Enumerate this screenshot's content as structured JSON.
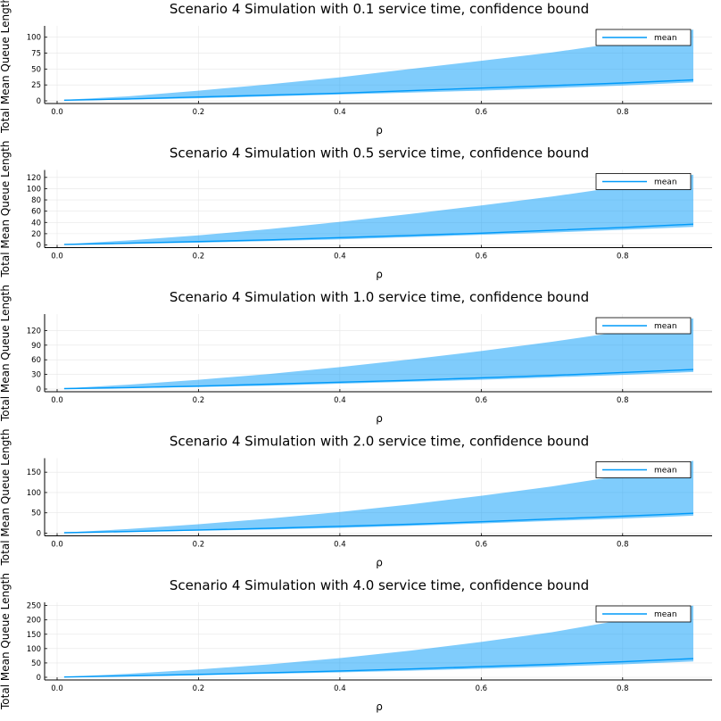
{
  "colors": {
    "series": "#009af9",
    "band": "#009af9",
    "axis": "#000000",
    "grid": "#e6e6e6"
  },
  "chart_data": [
    {
      "type": "line",
      "title": "Scenario 4 Simulation with 0.1 service time, confidence bound",
      "xlabel": "ρ",
      "ylabel": "Total Mean Queue Length",
      "xlim": [
        0.0,
        0.9
      ],
      "ylim": [
        0,
        115
      ],
      "xticks": [
        0.0,
        0.2,
        0.4,
        0.6,
        0.8
      ],
      "xtick_labels": [
        "0.0",
        "0.2",
        "0.4",
        "0.6",
        "0.8"
      ],
      "yticks": [
        0,
        25,
        50,
        75,
        100
      ],
      "ytick_labels": [
        "0",
        "25",
        "50",
        "75",
        "100"
      ],
      "grid": true,
      "legend": "top-right",
      "x": [
        0.01,
        0.1,
        0.2,
        0.3,
        0.4,
        0.5,
        0.6,
        0.7,
        0.8,
        0.9
      ],
      "series": [
        {
          "name": "mean",
          "values": [
            1,
            3,
            6,
            9,
            12,
            16,
            20,
            24,
            28,
            33
          ]
        }
      ],
      "band": {
        "lower": [
          0.5,
          2,
          4,
          7,
          10,
          13,
          16,
          20,
          24,
          29
        ],
        "upper": [
          1.5,
          7,
          16,
          26,
          37,
          50,
          63,
          76,
          92,
          112
        ]
      }
    },
    {
      "type": "line",
      "title": "Scenario 4 Simulation with 0.5 service time, confidence bound",
      "xlabel": "ρ",
      "ylabel": "Total Mean Queue Length",
      "xlim": [
        0.0,
        0.9
      ],
      "ylim": [
        0,
        130
      ],
      "xticks": [
        0.0,
        0.2,
        0.4,
        0.6,
        0.8
      ],
      "xtick_labels": [
        "0.0",
        "0.2",
        "0.4",
        "0.6",
        "0.8"
      ],
      "yticks": [
        0,
        20,
        40,
        60,
        80,
        100,
        120
      ],
      "ytick_labels": [
        "0",
        "20",
        "40",
        "60",
        "80",
        "100",
        "120"
      ],
      "grid": true,
      "legend": "top-right",
      "x": [
        0.01,
        0.1,
        0.2,
        0.3,
        0.4,
        0.5,
        0.6,
        0.7,
        0.8,
        0.9
      ],
      "series": [
        {
          "name": "mean",
          "values": [
            1,
            3,
            6,
            9,
            13,
            17,
            21,
            26,
            31,
            37
          ]
        }
      ],
      "band": {
        "lower": [
          0.5,
          2,
          4,
          7,
          10,
          14,
          18,
          22,
          27,
          32
        ],
        "upper": [
          1.5,
          8,
          17,
          28,
          41,
          55,
          70,
          86,
          104,
          125
        ]
      }
    },
    {
      "type": "line",
      "title": "Scenario 4 Simulation with 1.0 service time, confidence bound",
      "xlabel": "ρ",
      "ylabel": "Total Mean Queue Length",
      "xlim": [
        0.0,
        0.9
      ],
      "ylim": [
        0,
        150
      ],
      "xticks": [
        0.0,
        0.2,
        0.4,
        0.6,
        0.8
      ],
      "xtick_labels": [
        "0.0",
        "0.2",
        "0.4",
        "0.6",
        "0.8"
      ],
      "yticks": [
        0,
        30,
        60,
        90,
        120
      ],
      "ytick_labels": [
        "0",
        "30",
        "60",
        "90",
        "120"
      ],
      "grid": true,
      "legend": "top-right",
      "x": [
        0.01,
        0.1,
        0.2,
        0.3,
        0.4,
        0.5,
        0.6,
        0.7,
        0.8,
        0.9
      ],
      "series": [
        {
          "name": "mean",
          "values": [
            1,
            3,
            6,
            10,
            14,
            18,
            23,
            28,
            34,
            40
          ]
        }
      ],
      "band": {
        "lower": [
          0.5,
          2,
          4,
          7,
          11,
          15,
          19,
          24,
          29,
          35
        ],
        "upper": [
          1.5,
          9,
          19,
          31,
          45,
          61,
          78,
          97,
          118,
          145
        ]
      }
    },
    {
      "type": "line",
      "title": "Scenario 4 Simulation with 2.0 service time, confidence bound",
      "xlabel": "ρ",
      "ylabel": "Total Mean Queue Length",
      "xlim": [
        0.0,
        0.9
      ],
      "ylim": [
        0,
        180
      ],
      "xticks": [
        0.0,
        0.2,
        0.4,
        0.6,
        0.8
      ],
      "xtick_labels": [
        "0.0",
        "0.2",
        "0.4",
        "0.6",
        "0.8"
      ],
      "yticks": [
        0,
        50,
        100,
        150
      ],
      "ytick_labels": [
        "0",
        "50",
        "100",
        "150"
      ],
      "grid": true,
      "legend": "top-right",
      "x": [
        0.01,
        0.1,
        0.2,
        0.3,
        0.4,
        0.5,
        0.6,
        0.7,
        0.8,
        0.9
      ],
      "series": [
        {
          "name": "mean",
          "values": [
            1,
            4,
            8,
            12,
            17,
            22,
            28,
            35,
            42,
            49
          ]
        }
      ],
      "band": {
        "lower": [
          0.5,
          3,
          6,
          9,
          13,
          18,
          24,
          30,
          36,
          43
        ],
        "upper": [
          1.5,
          10,
          22,
          36,
          52,
          71,
          92,
          115,
          142,
          178
        ]
      }
    },
    {
      "type": "line",
      "title": "Scenario 4 Simulation with 4.0 service time, confidence bound",
      "xlabel": "ρ",
      "ylabel": "Total Mean Queue Length",
      "xlim": [
        0.0,
        0.9
      ],
      "ylim": [
        0,
        255
      ],
      "xticks": [
        0.0,
        0.2,
        0.4,
        0.6,
        0.8
      ],
      "xtick_labels": [
        "0.0",
        "0.2",
        "0.4",
        "0.6",
        "0.8"
      ],
      "yticks": [
        0,
        50,
        100,
        150,
        200,
        250
      ],
      "ytick_labels": [
        "0",
        "50",
        "100",
        "150",
        "200",
        "250"
      ],
      "grid": true,
      "legend": "top-right",
      "x": [
        0.01,
        0.1,
        0.2,
        0.3,
        0.4,
        0.5,
        0.6,
        0.7,
        0.8,
        0.9
      ],
      "series": [
        {
          "name": "mean",
          "values": [
            1,
            5,
            10,
            16,
            22,
            29,
            37,
            45,
            54,
            65
          ]
        }
      ],
      "band": {
        "lower": [
          0.5,
          3,
          7,
          12,
          17,
          23,
          30,
          37,
          45,
          55
        ],
        "upper": [
          1.5,
          12,
          27,
          45,
          67,
          93,
          123,
          157,
          200,
          250
        ]
      }
    }
  ]
}
